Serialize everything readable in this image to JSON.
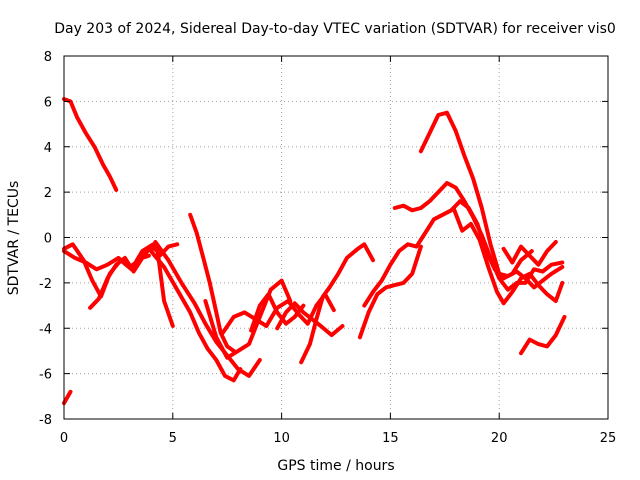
{
  "chart_data": {
    "type": "line",
    "title": "Day 203 of 2024, Sidereal Day-to-day VTEC variation (SDTVAR) for receiver vis0",
    "xlabel": "GPS time / hours",
    "ylabel": "SDTVAR / TECUs",
    "xlim": [
      0,
      25
    ],
    "ylim": [
      -8,
      8
    ],
    "xticks": [
      0,
      5,
      10,
      15,
      20,
      25
    ],
    "yticks": [
      -8,
      -6,
      -4,
      -2,
      0,
      2,
      4,
      6,
      8
    ],
    "grid": true,
    "color": "#ff0000",
    "series": [
      {
        "name": "s1",
        "x": [
          0.0,
          0.3,
          0.6,
          1.0,
          1.4,
          1.8,
          2.1,
          2.4
        ],
        "y": [
          6.1,
          6.0,
          5.3,
          4.6,
          4.0,
          3.2,
          2.7,
          2.1
        ]
      },
      {
        "name": "s2",
        "x": [
          0.0,
          0.3
        ],
        "y": [
          -7.3,
          -6.8
        ]
      },
      {
        "name": "s3",
        "x": [
          0.0,
          0.5,
          1.0,
          1.5,
          2.0,
          2.5,
          3.0,
          3.5,
          4.0,
          4.3,
          4.6,
          5.0
        ],
        "y": [
          -0.6,
          -0.9,
          -1.1,
          -1.4,
          -1.2,
          -0.9,
          -1.3,
          -1.0,
          -0.4,
          -0.6,
          -2.8,
          -3.9
        ]
      },
      {
        "name": "s4",
        "x": [
          0.0,
          0.4,
          0.9,
          1.3,
          1.7,
          2.1,
          2.6,
          3.1,
          3.6,
          4.1,
          4.4,
          4.8,
          5.2
        ],
        "y": [
          -0.5,
          -0.3,
          -1.0,
          -1.9,
          -2.6,
          -1.6,
          -1.0,
          -1.4,
          -0.6,
          -0.3,
          -0.8,
          -0.4,
          -0.3
        ]
      },
      {
        "name": "s5",
        "x": [
          1.2,
          1.6,
          2.0,
          2.4,
          2.8,
          3.2,
          3.6,
          3.9
        ],
        "y": [
          -3.1,
          -2.7,
          -1.8,
          -1.2,
          -0.9,
          -1.5,
          -0.9,
          -0.8
        ]
      },
      {
        "name": "s6",
        "x": [
          4.0,
          4.6,
          5.2,
          5.8,
          6.2,
          6.6,
          7.0,
          7.4,
          7.8,
          8.1
        ],
        "y": [
          -0.6,
          -1.3,
          -2.3,
          -3.3,
          -4.2,
          -4.9,
          -5.4,
          -6.1,
          -6.3,
          -5.8
        ]
      },
      {
        "name": "s7",
        "x": [
          4.2,
          4.8,
          5.4,
          6.0,
          6.5,
          7.0,
          7.5,
          8.0,
          8.5,
          9.0
        ],
        "y": [
          -0.2,
          -1.0,
          -2.0,
          -2.9,
          -3.8,
          -4.6,
          -5.2,
          -5.8,
          -6.1,
          -5.4
        ]
      },
      {
        "name": "s8",
        "x": [
          5.8,
          6.1,
          6.4,
          6.7,
          7.0,
          7.2,
          7.5,
          7.8
        ],
        "y": [
          1.0,
          0.2,
          -0.9,
          -2.0,
          -3.3,
          -4.2,
          -4.8,
          -5.0
        ]
      },
      {
        "name": "s9",
        "x": [
          6.5,
          7.0,
          7.5,
          8.0,
          8.5,
          9.0,
          9.5,
          10.0,
          10.4
        ],
        "y": [
          -2.8,
          -4.4,
          -5.3,
          -5.0,
          -4.7,
          -3.5,
          -2.3,
          -1.9,
          -2.8
        ]
      },
      {
        "name": "s10",
        "x": [
          7.3,
          7.8,
          8.3,
          8.8,
          9.3,
          9.8,
          10.3,
          10.8,
          11.2,
          11.6,
          12.0,
          12.4
        ],
        "y": [
          -4.2,
          -3.5,
          -3.3,
          -3.6,
          -3.9,
          -3.1,
          -2.8,
          -3.4,
          -3.8,
          -3.0,
          -2.5,
          -3.2
        ]
      },
      {
        "name": "s11",
        "x": [
          8.6,
          9.0,
          9.4,
          9.8,
          10.2,
          10.6,
          11.0
        ],
        "y": [
          -4.1,
          -3.0,
          -2.5,
          -3.3,
          -3.8,
          -3.5,
          -3.0
        ]
      },
      {
        "name": "s12",
        "x": [
          9.8,
          10.2,
          10.6,
          11.0,
          11.4,
          11.8,
          12.3,
          12.8
        ],
        "y": [
          -4.0,
          -3.3,
          -2.9,
          -3.3,
          -3.6,
          -3.9,
          -4.3,
          -3.9
        ]
      },
      {
        "name": "s13",
        "x": [
          10.9,
          11.3,
          11.6,
          11.9,
          12.2,
          12.6,
          13.0,
          13.5,
          13.8,
          14.2
        ],
        "y": [
          -5.5,
          -4.7,
          -3.6,
          -2.6,
          -2.2,
          -1.6,
          -0.9,
          -0.5,
          -0.3,
          -1.0
        ]
      },
      {
        "name": "s14",
        "x": [
          13.6,
          14.0,
          14.4,
          14.8,
          15.2,
          15.6,
          16.0,
          16.4
        ],
        "y": [
          -4.4,
          -3.3,
          -2.5,
          -2.2,
          -2.1,
          -2.0,
          -1.6,
          -0.4
        ]
      },
      {
        "name": "s15",
        "x": [
          13.8,
          14.2,
          14.6,
          15.0,
          15.4,
          15.8,
          16.2,
          16.6,
          17.0,
          17.4,
          17.8,
          18.2,
          18.6,
          19.0,
          19.4,
          19.8,
          20.2,
          20.6,
          21.0,
          21.5
        ],
        "y": [
          -3.0,
          -2.4,
          -1.9,
          -1.2,
          -0.6,
          -0.3,
          -0.4,
          0.2,
          0.8,
          1.0,
          1.2,
          1.6,
          1.3,
          0.6,
          -0.6,
          -1.4,
          -1.8,
          -1.6,
          -1.0,
          -0.6
        ]
      },
      {
        "name": "s16",
        "x": [
          15.2,
          15.6,
          16.0,
          16.4,
          16.8,
          17.2,
          17.6,
          18.0,
          18.4,
          18.8,
          19.2,
          19.6,
          20.0,
          20.4,
          20.8,
          21.2,
          21.6,
          22.0,
          22.4,
          22.9
        ],
        "y": [
          1.3,
          1.4,
          1.2,
          1.3,
          1.6,
          2.0,
          2.4,
          2.2,
          1.6,
          0.9,
          0.1,
          -0.9,
          -1.8,
          -2.3,
          -2.0,
          -2.0,
          -1.4,
          -1.5,
          -1.2,
          -1.1
        ]
      },
      {
        "name": "s17",
        "x": [
          16.4,
          16.8,
          17.2,
          17.6,
          18.0,
          18.4,
          18.8,
          19.2,
          19.6,
          20.0,
          20.4,
          20.8,
          21.2,
          21.6,
          22.0,
          22.4,
          22.9
        ],
        "y": [
          3.8,
          4.6,
          5.4,
          5.5,
          4.7,
          3.6,
          2.6,
          1.3,
          -0.3,
          -1.6,
          -1.7,
          -1.5,
          -1.8,
          -2.2,
          -1.9,
          -1.6,
          -1.3
        ]
      },
      {
        "name": "s18",
        "x": [
          17.9,
          18.3,
          18.7,
          19.1,
          19.5,
          19.9,
          20.2,
          20.6,
          21.0,
          21.4,
          21.8,
          22.2,
          22.6,
          22.9
        ],
        "y": [
          1.3,
          0.3,
          0.6,
          -0.1,
          -1.3,
          -2.4,
          -2.9,
          -2.4,
          -1.8,
          -1.6,
          -2.1,
          -2.5,
          -2.8,
          -2.0
        ]
      },
      {
        "name": "s19",
        "x": [
          20.2,
          20.6,
          21.0,
          21.4,
          21.8,
          22.2,
          22.6
        ],
        "y": [
          -0.5,
          -1.1,
          -0.4,
          -0.8,
          -1.2,
          -0.6,
          -0.2
        ]
      },
      {
        "name": "s20",
        "x": [
          21.0,
          21.4,
          21.8,
          22.2,
          22.6,
          23.0
        ],
        "y": [
          -5.1,
          -4.5,
          -4.7,
          -4.8,
          -4.3,
          -3.5
        ]
      }
    ]
  }
}
